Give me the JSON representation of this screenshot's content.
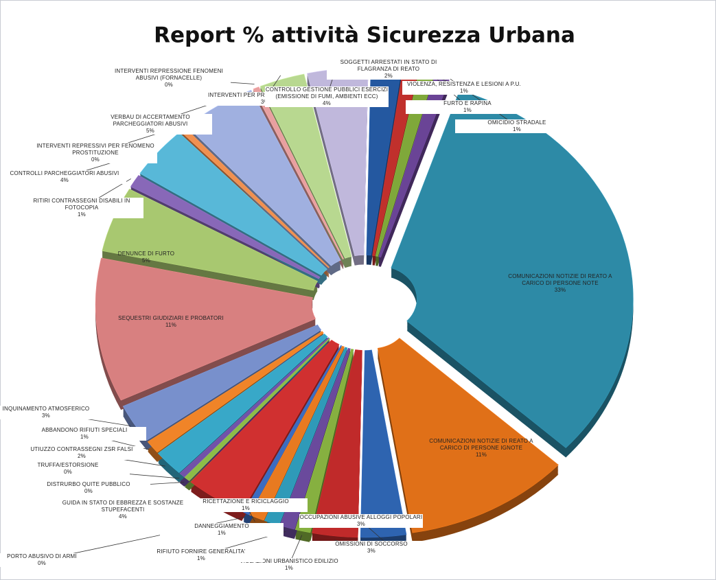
{
  "chart_data": {
    "type": "pie",
    "title": "Report % attività Sicurezza Urbana",
    "categories": [
      "SOGGETTI ARRESTATI IN STATO DI FLAGRANZA DI REATO",
      "VIOLENZA, RESISTENZA E LESIONI A P.U.",
      "FURTO E RAPINA",
      "OMICIDIO STRADALE",
      "COMUNICAZIONI NOTIZIE DI REATO A CARICO DI PERSONE NOTE",
      "COMUNICAZIONI NOTIZIE DI REATO A CARICO DI PERSONE IGNOTE",
      "OCCUPAZIONI ABUSIVE ALLOGGI POPOLARI",
      "OMISSIONI DI SOCCORSO",
      "VIOLAZIONI URBANISTICO EDILIZIO",
      "RIFIUTO FORNIRE GENERALITA'",
      "DANNEGGIAMENTO",
      "RICETTAZIONE E RICICLAGGIO",
      "PORTO ABUSIVO DI ARMI",
      "GUIDA IN STATO DI EBBREZZA E SOSTANZE STUPEFACENTI",
      "DISTRURBO QUITE PUBBLICO",
      "TRUFFA/ESTORSIONE",
      "UTIUZZO CONTRASSEGNI ZSR FALSI",
      "ABBANDONO RIFIUTI SPECIALI",
      "INQUINAMENTO ATMOSFERICO",
      "SEQUESTRI GIUDIZIARI E PROBATORI",
      "DENUNCE DI FURTO",
      "RITIRI CONTRASSEGNI DISABILI IN FOTOCOPIA",
      "CONTROLLI PARCHEGGIATORI ABUSIVI",
      "INTERVENTI REPRESSIVI PER FENOMENO PROSTITUZIONE",
      "VERBAU DI ACCERTAMENTO PARCHEGGIATORI ABUSIVI",
      "INTERVENTI REPRESSIONE FENOMENI ABUSIVI (FORNACELLE)",
      "INTERVENTI PER PRESENZA DI AMIANTO",
      "CONTROLLO GESTIONE PUBBLICI ESERCIZI (EMISSIONE DI FUMI, AMBIENTI ECC)"
    ],
    "values": [
      2,
      1,
      1,
      1,
      33,
      11,
      3,
      3,
      1,
      1,
      1,
      1,
      0.4,
      4,
      0.4,
      0.4,
      2,
      1,
      3,
      11,
      5,
      1,
      4,
      0.4,
      5,
      0.4,
      3,
      4
    ],
    "value_labels": [
      "2%",
      "1%",
      "1%",
      "1%",
      "33%",
      "11%",
      "3%",
      "3%",
      "1%",
      "1%",
      "1%",
      "1%",
      "0%",
      "4%",
      "0%",
      "0%",
      "2%",
      "1%",
      "3%",
      "11%",
      "5%",
      "1%",
      "4%",
      "0%",
      "5%",
      "0%",
      "3%",
      "4%"
    ],
    "colors": [
      "#2458a0",
      "#c0302c",
      "#7fa83a",
      "#6a4496",
      "#2d8aa6",
      "#e07018",
      "#2e64b0",
      "#c02a2a",
      "#86b040",
      "#6a4a9c",
      "#2f9ab8",
      "#e87a20",
      "#3a6cc0",
      "#d03030",
      "#8cbc48",
      "#7252a8",
      "#38a8c8",
      "#f08428",
      "#7890cc",
      "#d88080",
      "#a8c870",
      "#8868b8",
      "#58b8d8",
      "#f09050",
      "#a0b0e0",
      "#e8a0a0",
      "#b8d890",
      "#c0b8dc"
    ]
  }
}
